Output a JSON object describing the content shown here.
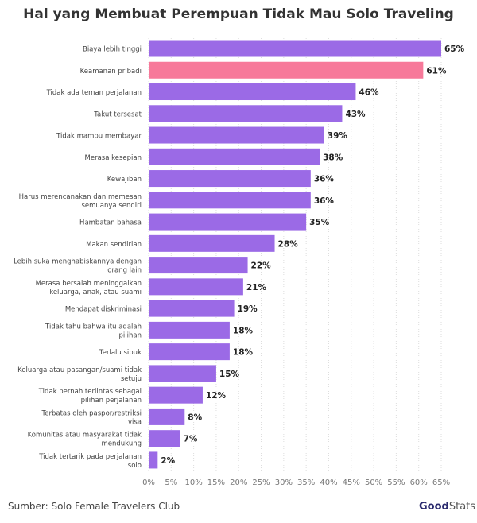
{
  "chart_data": {
    "type": "bar",
    "orientation": "horizontal",
    "title": "Hal yang Membuat Perempuan Tidak Mau Solo Traveling",
    "categories": [
      "Biaya lebih tinggi",
      "Keamanan pribadi",
      "Tidak ada teman perjalanan",
      "Takut tersesat",
      "Tidak mampu membayar",
      "Merasa kesepian",
      "Kewajiban",
      "Harus merencanakan dan memesan semuanya sendiri",
      "Hambatan bahasa",
      "Makan sendirian",
      "Lebih suka menghabiskannya dengan orang lain",
      "Merasa bersalah meninggalkan keluarga, anak, atau suami",
      "Mendapat diskriminasi",
      "Tidak tahu bahwa itu adalah pilihan",
      "Terlalu sibuk",
      "Keluarga atau pasangan/suami tidak setuju",
      "Tidak pernah terlintas sebagai pilihan perjalanan",
      "Terbatas oleh paspor/restriksi visa",
      "Komunitas atau masyarakat tidak mendukung",
      "Tidak tertarik pada perjalanan solo"
    ],
    "values": [
      65,
      61,
      46,
      43,
      39,
      38,
      36,
      36,
      35,
      28,
      22,
      21,
      19,
      18,
      18,
      15,
      12,
      8,
      7,
      2
    ],
    "data_labels": [
      "65%",
      "61%",
      "46%",
      "43%",
      "39%",
      "38%",
      "36%",
      "36%",
      "35%",
      "28%",
      "22%",
      "21%",
      "19%",
      "18%",
      "18%",
      "15%",
      "12%",
      "8%",
      "7%",
      "2%"
    ],
    "highlight_index": 1,
    "colors": {
      "bar": "#9b6ae6",
      "highlight": "#f7799a"
    },
    "xlim": [
      0,
      65
    ],
    "x_ticks": [
      "0%",
      "5%",
      "10%",
      "15%",
      "20%",
      "25%",
      "30%",
      "35%",
      "40%",
      "45%",
      "50%",
      "55%",
      "60%",
      "65%"
    ],
    "grid": "vertical dotted",
    "xlabel": "",
    "ylabel": ""
  },
  "footer": {
    "source": "Sumber: Solo Female Travelers Club",
    "logo_bold": "Good",
    "logo_light": "Stats"
  }
}
